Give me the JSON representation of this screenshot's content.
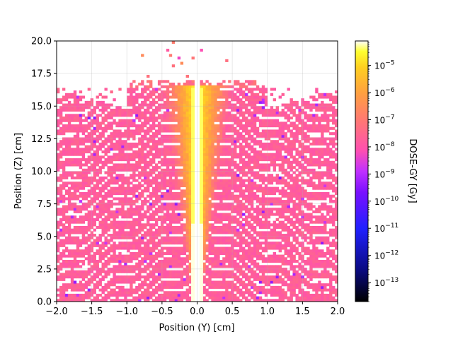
{
  "chart_data": {
    "type": "heatmap",
    "title": "",
    "xlabel": "Position (Y) [cm]",
    "ylabel": "Position (Z) [cm]",
    "xlim": [
      -2.0,
      2.0
    ],
    "ylim": [
      0.0,
      20.0
    ],
    "x_ticks": [
      "−2.0",
      "−1.5",
      "−1.0",
      "−0.5",
      "0.0",
      "0.5",
      "1.0",
      "1.5",
      "2.0"
    ],
    "y_ticks": [
      "0.0",
      "2.5",
      "5.0",
      "7.5",
      "10.0",
      "12.5",
      "15.0",
      "17.5",
      "20.0"
    ],
    "grid": true,
    "colormap": "gnuplot2",
    "colorbar": {
      "label": "DOSE-GY [Gy]",
      "scale": "log",
      "range_log10": [
        -13.7,
        -4.1
      ],
      "tick_exponents": [
        -13,
        -12,
        -11,
        -10,
        -9,
        -8,
        -7,
        -6,
        -5
      ]
    },
    "description_values": {
      "max_dose_region": "central column near Y = 0, Z = 8–16 cm (≈ 1e-5 Gy)",
      "fan_edge_dose": "≈ 1e-8 – 1e-7 Gy",
      "beam_top_z_cm": 16.5,
      "central_gap_y_cm": [
        -0.03,
        0.03
      ]
    }
  },
  "colors": {
    "high": "#ffff40",
    "mid": "#ffa040",
    "low": "#ff6490",
    "very_low": "#5a00ff",
    "background": "#ffffff"
  }
}
